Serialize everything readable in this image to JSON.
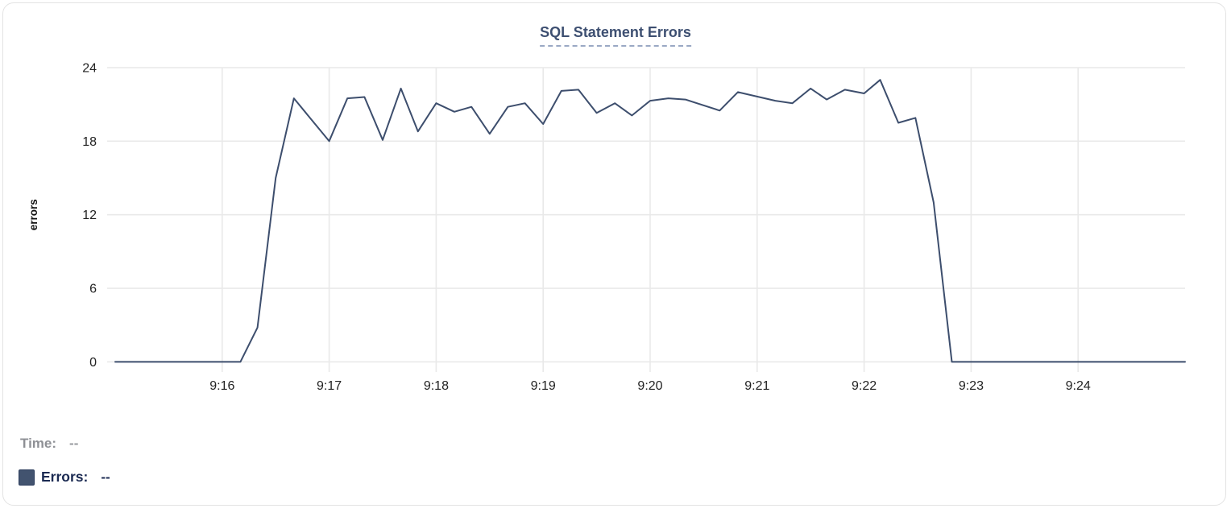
{
  "chart_data": {
    "type": "line",
    "title": "SQL Statement Errors",
    "xlabel": "",
    "ylabel": "errors",
    "xlim_minutes": [
      15,
      25
    ],
    "ylim": [
      0,
      24
    ],
    "grid": true,
    "x_ticks": [
      {
        "label": "9:16",
        "minute": 16
      },
      {
        "label": "9:17",
        "minute": 17
      },
      {
        "label": "9:18",
        "minute": 18
      },
      {
        "label": "9:19",
        "minute": 19
      },
      {
        "label": "9:20",
        "minute": 20
      },
      {
        "label": "9:21",
        "minute": 21
      },
      {
        "label": "9:22",
        "minute": 22
      },
      {
        "label": "9:23",
        "minute": 23
      },
      {
        "label": "9:24",
        "minute": 24
      }
    ],
    "y_ticks": [
      0,
      6,
      12,
      18,
      24
    ],
    "legend_position": "bottom-left",
    "series": [
      {
        "name": "Errors",
        "color": "#3d4e6d",
        "points_minutes_value": [
          [
            15.0,
            0
          ],
          [
            16.17,
            0
          ],
          [
            16.33,
            2.8
          ],
          [
            16.5,
            15.0
          ],
          [
            16.67,
            21.5
          ],
          [
            17.0,
            18.0
          ],
          [
            17.17,
            21.5
          ],
          [
            17.33,
            21.6
          ],
          [
            17.5,
            18.1
          ],
          [
            17.67,
            22.3
          ],
          [
            17.83,
            18.8
          ],
          [
            18.0,
            21.1
          ],
          [
            18.17,
            20.4
          ],
          [
            18.33,
            20.8
          ],
          [
            18.5,
            18.6
          ],
          [
            18.67,
            20.8
          ],
          [
            18.83,
            21.1
          ],
          [
            19.0,
            19.4
          ],
          [
            19.17,
            22.1
          ],
          [
            19.33,
            22.2
          ],
          [
            19.5,
            20.3
          ],
          [
            19.67,
            21.1
          ],
          [
            19.83,
            20.1
          ],
          [
            20.0,
            21.3
          ],
          [
            20.17,
            21.5
          ],
          [
            20.33,
            21.4
          ],
          [
            20.65,
            20.5
          ],
          [
            20.82,
            22.0
          ],
          [
            21.17,
            21.3
          ],
          [
            21.33,
            21.1
          ],
          [
            21.5,
            22.3
          ],
          [
            21.65,
            21.4
          ],
          [
            21.82,
            22.2
          ],
          [
            22.0,
            21.9
          ],
          [
            22.15,
            23.0
          ],
          [
            22.32,
            19.5
          ],
          [
            22.48,
            19.9
          ],
          [
            22.65,
            13.0
          ],
          [
            22.82,
            0
          ],
          [
            25.0,
            0
          ]
        ]
      }
    ]
  },
  "tooltip": {
    "time_label": "Time:",
    "time_value": "--",
    "errors_label": "Errors:",
    "errors_value": "--",
    "swatch_color": "#42536f"
  },
  "colors": {
    "line": "#3d4e6d",
    "title_text": "#3d4f71",
    "title_underline": "#9aa8c4",
    "grid": "#e9e9e9",
    "tick_text": "#222222",
    "axis_label_text": "#111111",
    "card_border": "#e3e3e3",
    "time_text": "#8e9095",
    "errors_text": "#1b2a52"
  }
}
